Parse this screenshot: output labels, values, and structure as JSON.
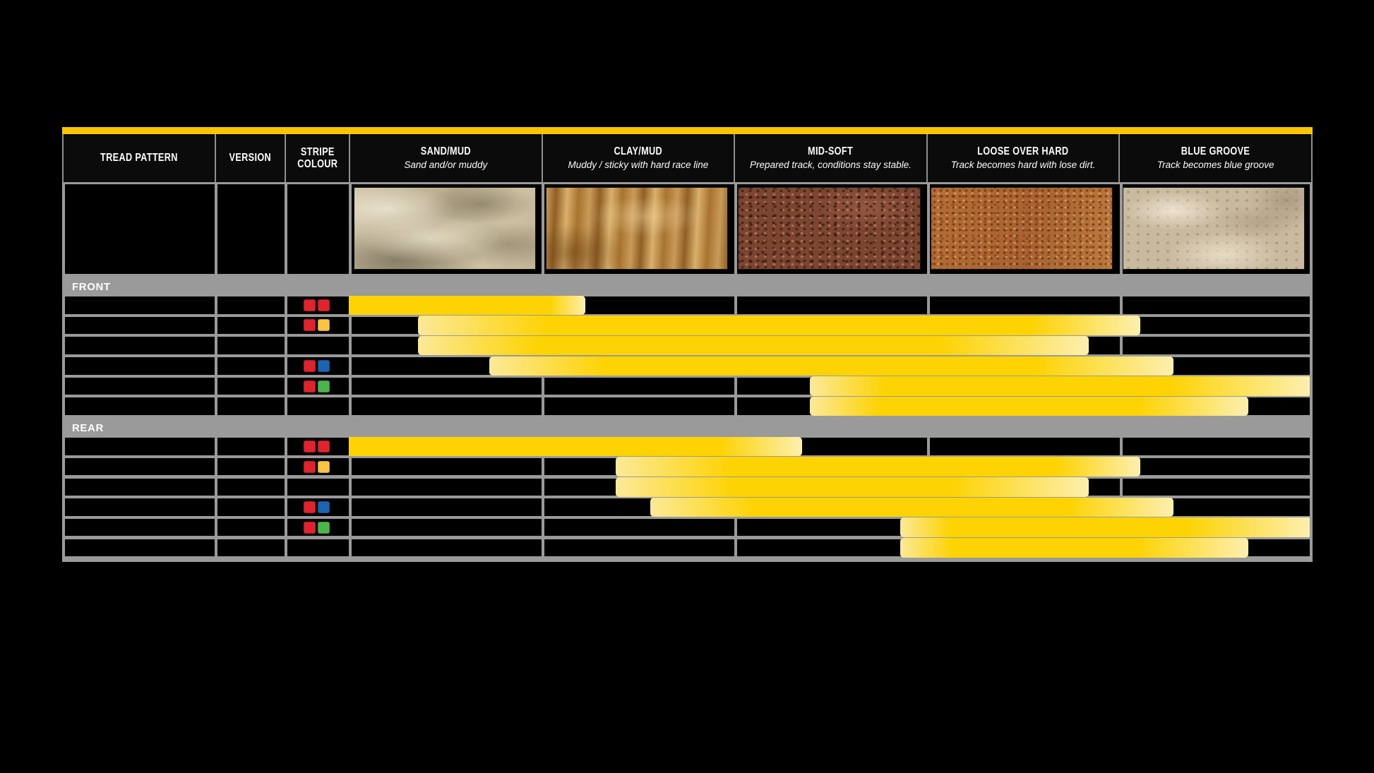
{
  "page": {
    "background": "#000000"
  },
  "colors": {
    "top_accent": "#F9C606",
    "body_gray": "#9A9A9A",
    "cell_black": "#000000",
    "header_border_gray": "#8f8f8f",
    "header_text": "#ffffff"
  },
  "stripe_palette": {
    "red": "#E1232E",
    "amber": "#F9C440",
    "blue": "#1C64B2",
    "green": "#4BB44B"
  },
  "table_header": {
    "columns": [
      {
        "title": "TREAD PATTERN"
      },
      {
        "title": "VERSION"
      },
      {
        "title": "STRIPE\nCOLOUR"
      },
      {
        "title": "SAND/MUD",
        "subtitle": "Sand and/or muddy",
        "terrain": "sand"
      },
      {
        "title": "CLAY/MUD",
        "subtitle": "Muddy / sticky with hard race line",
        "terrain": "clay"
      },
      {
        "title": "MID-SOFT",
        "subtitle": "Prepared track, conditions stay stable.",
        "terrain": "midsoft"
      },
      {
        "title": "LOOSE OVER HARD",
        "subtitle": "Track becomes hard with lose dirt.",
        "terrain": "loose"
      },
      {
        "title": "BLUE GROOVE",
        "subtitle": "Track becomes blue groove",
        "terrain": "bluegroove"
      }
    ]
  },
  "chart_data": {
    "type": "bar",
    "subtype": "horizontal suitability ranges (gantt-style), one yellow bar per tyre row",
    "categories": [
      "SAND/MUD",
      "CLAY/MUD",
      "MID-SOFT",
      "LOOSE OVER HARD",
      "BLUE GROOVE"
    ],
    "unit_note": "range values in condition-column units: 0 = left edge of SAND/MUD, 5 = right edge of BLUE GROOVE; fade = [solid-start, solid-end] fractions of the bar",
    "colors": {
      "solid": "#FDD303",
      "pale": "#FCE998",
      "tail": "#FDEFAE"
    },
    "sections": [
      {
        "label": "FRONT",
        "rows": [
          {
            "stripe_colours": [
              "red",
              "red"
            ],
            "range": [
              0,
              1.23
            ],
            "fade": [
              0,
              0.85
            ]
          },
          {
            "stripe_colours": [
              "red",
              "amber"
            ],
            "range": [
              0.36,
              4.12
            ],
            "fade": [
              0.18,
              0.85
            ]
          },
          {
            "stripe_colours": [],
            "range": [
              0.36,
              3.85
            ],
            "fade": [
              0.18,
              0.78
            ]
          },
          {
            "stripe_colours": [
              "red",
              "blue"
            ],
            "range": [
              0.73,
              4.29
            ],
            "fade": [
              0.17,
              0.8
            ]
          },
          {
            "stripe_colours": [
              "red",
              "green"
            ],
            "range": [
              2.4,
              5
            ],
            "fade": [
              0.15,
              0.72
            ]
          },
          {
            "stripe_colours": [],
            "range": [
              2.4,
              4.68
            ],
            "fade": [
              0.16,
              0.75
            ]
          }
        ]
      },
      {
        "label": "REAR",
        "rows": [
          {
            "stripe_colours": [
              "red",
              "red"
            ],
            "range": [
              0,
              2.36
            ],
            "fade": [
              0,
              0.82
            ]
          },
          {
            "stripe_colours": [
              "red",
              "amber"
            ],
            "range": [
              1.39,
              4.12
            ],
            "fade": [
              0.22,
              0.84
            ]
          },
          {
            "stripe_colours": [],
            "range": [
              1.39,
              3.85
            ],
            "fade": [
              0.25,
              0.71
            ]
          },
          {
            "stripe_colours": [
              "red",
              "blue"
            ],
            "range": [
              1.57,
              4.29
            ],
            "fade": [
              0.2,
              0.8
            ]
          },
          {
            "stripe_colours": [
              "red",
              "green"
            ],
            "range": [
              2.87,
              5
            ],
            "fade": [
              0.12,
              0.7
            ]
          },
          {
            "stripe_colours": [],
            "range": [
              2.87,
              4.68
            ],
            "fade": [
              0.15,
              0.68
            ]
          }
        ]
      }
    ]
  }
}
